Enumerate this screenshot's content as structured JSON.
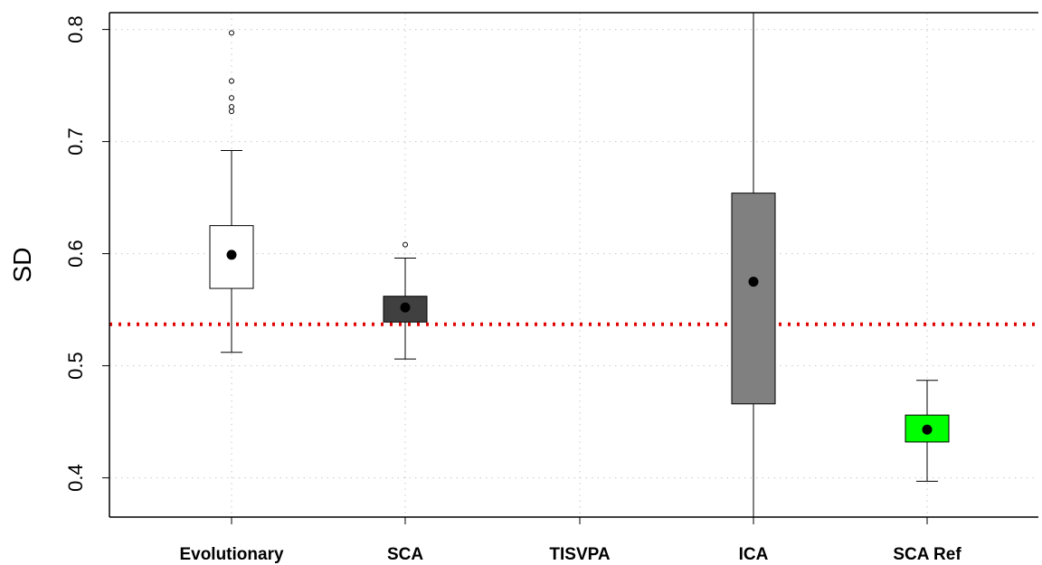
{
  "chart_data": {
    "type": "boxplot",
    "title": "",
    "xlabel": "",
    "ylabel": "SD",
    "ylim": [
      0.365,
      0.815
    ],
    "yticks": [
      "0.4",
      "0.5",
      "0.6",
      "0.7",
      "0.8"
    ],
    "grid": true,
    "reference_line": {
      "value": 0.537,
      "color": "#e00000",
      "style": "dotted"
    },
    "categories": [
      "Evolutionary",
      "SCA",
      "TISVPA",
      "ICA",
      "SCA Ref"
    ],
    "boxes": [
      {
        "label": "Evolutionary",
        "whisker_low": 0.512,
        "q1": 0.569,
        "q3": 0.625,
        "whisker_high": 0.692,
        "mean": 0.599,
        "outliers": [
          0.727,
          0.731,
          0.739,
          0.754,
          0.797
        ],
        "fill": "#ffffff"
      },
      {
        "label": "SCA",
        "whisker_low": 0.506,
        "q1": 0.539,
        "q3": 0.562,
        "whisker_high": 0.596,
        "mean": 0.552,
        "outliers": [
          0.608
        ],
        "fill": "#404040"
      },
      {
        "label": "TISVPA",
        "whisker_low": null,
        "q1": null,
        "q3": null,
        "whisker_high": null,
        "mean": null,
        "outliers": [],
        "fill": "#ffffff"
      },
      {
        "label": "ICA",
        "whisker_low": 0.36,
        "q1": 0.466,
        "q3": 0.654,
        "whisker_high": 0.82,
        "mean": 0.575,
        "outliers": [],
        "fill": "#808080"
      },
      {
        "label": "SCA Ref",
        "whisker_low": 0.397,
        "q1": 0.432,
        "q3": 0.456,
        "whisker_high": 0.487,
        "mean": 0.443,
        "outliers": [],
        "fill": "#00ff00"
      }
    ]
  }
}
